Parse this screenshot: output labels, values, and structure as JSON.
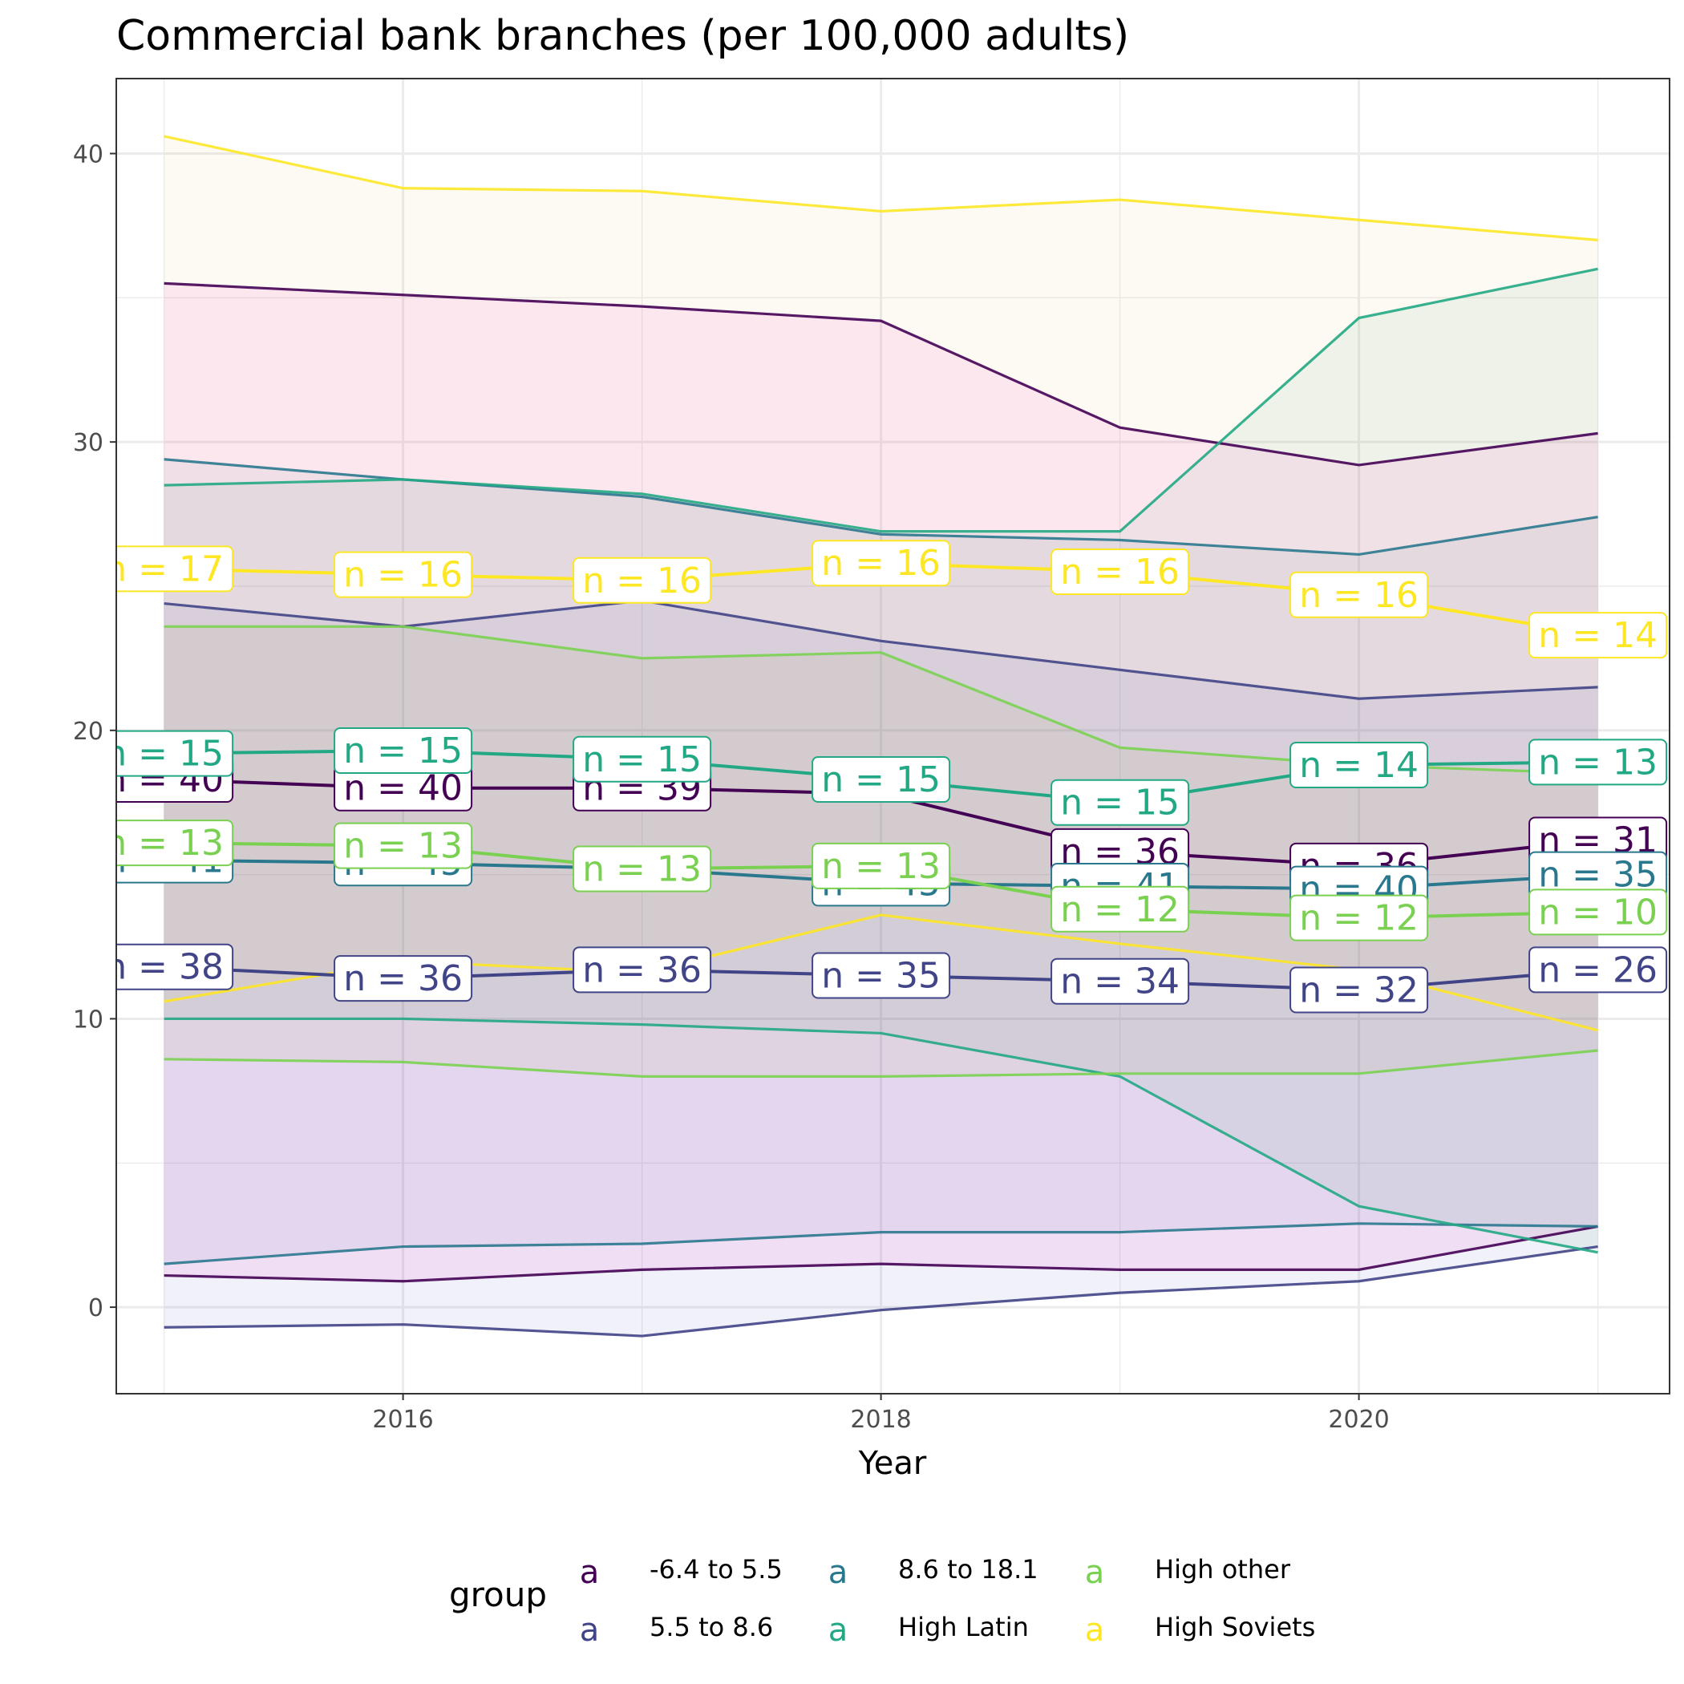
{
  "chart_data": {
    "type": "line",
    "title": "Commercial bank branches (per 100,000 adults)",
    "xlabel": "Year",
    "ylabel": "",
    "xlim": [
      2014.8,
      2021.3
    ],
    "ylim": [
      -3.0,
      42.6
    ],
    "x_ticks": [
      2016,
      2018,
      2020
    ],
    "x_tick_labels": [
      "2016",
      "2018",
      "2020"
    ],
    "y_ticks": [
      0,
      10,
      20,
      30,
      40
    ],
    "y_tick_labels": [
      "0",
      "10",
      "20",
      "30",
      "40"
    ],
    "grid": true,
    "legend": {
      "title": "group",
      "position": "bottom",
      "key_glyph": "a",
      "entries": [
        {
          "label": "-6.4 to 5.5",
          "color": "#440154"
        },
        {
          "label": "5.5 to 8.6",
          "color": "#414487"
        },
        {
          "label": "8.6 to 18.1",
          "color": "#2A788E"
        },
        {
          "label": "High Latin",
          "color": "#22A884"
        },
        {
          "label": "High other",
          "color": "#7AD151"
        },
        {
          "label": "High Soviets",
          "color": "#FDE725"
        }
      ]
    },
    "x": [
      2015,
      2016,
      2017,
      2018,
      2019,
      2020,
      2021
    ],
    "series": [
      {
        "name": "-6.4 to 5.5",
        "color": "#440154",
        "fill": "#FF00C8",
        "upper": [
          35.5,
          35.1,
          34.7,
          34.2,
          30.5,
          29.2,
          30.3
        ],
        "lower": [
          1.1,
          0.9,
          1.3,
          1.5,
          1.3,
          1.3,
          2.8
        ],
        "mean": [
          18.3,
          18.0,
          18.0,
          17.8,
          15.8,
          15.3,
          16.2
        ],
        "n": [
          40,
          40,
          39,
          null,
          36,
          36,
          31
        ],
        "n_label_y": [
          18.3,
          18.0,
          18.0,
          null,
          15.8,
          15.3,
          16.2
        ]
      },
      {
        "name": "5.5 to 8.6",
        "color": "#414487",
        "fill": "#3A4FAE",
        "upper": [
          24.4,
          23.6,
          24.5,
          23.1,
          22.1,
          21.1,
          21.5
        ],
        "lower": [
          -0.7,
          -0.6,
          -1.0,
          -0.1,
          0.5,
          0.9,
          2.1
        ],
        "mean": [
          11.8,
          11.4,
          11.7,
          11.5,
          11.3,
          11.0,
          11.7
        ],
        "n": [
          38,
          36,
          36,
          35,
          34,
          32,
          26
        ],
        "n_label_y": [
          11.8,
          11.4,
          11.7,
          11.5,
          11.3,
          11.0,
          11.7
        ]
      },
      {
        "name": "8.6 to 18.1",
        "color": "#2A788E",
        "fill": "#5F7EA0",
        "upper": [
          29.4,
          28.7,
          28.1,
          26.8,
          26.6,
          26.1,
          27.4
        ],
        "lower": [
          1.5,
          2.1,
          2.2,
          2.6,
          2.6,
          2.9,
          2.8
        ],
        "mean": [
          15.5,
          15.4,
          15.2,
          14.7,
          14.6,
          14.5,
          15.0
        ],
        "n": [
          41,
          45,
          null,
          45,
          41,
          40,
          35
        ],
        "n_label_y": [
          15.5,
          15.4,
          null,
          14.7,
          14.6,
          14.5,
          15.0
        ]
      },
      {
        "name": "High Latin",
        "color": "#22A884",
        "fill": "#3E9C78",
        "upper": [
          28.5,
          28.7,
          28.2,
          26.9,
          26.9,
          34.3,
          36.0
        ],
        "lower": [
          10.0,
          10.0,
          9.8,
          9.5,
          8.0,
          3.5,
          1.9
        ],
        "mean": [
          19.2,
          19.3,
          19.0,
          18.3,
          17.5,
          18.8,
          18.9
        ],
        "n": [
          15,
          15,
          15,
          15,
          15,
          14,
          13
        ],
        "n_label_y": [
          19.2,
          19.3,
          19.0,
          18.3,
          17.5,
          18.8,
          18.9
        ]
      },
      {
        "name": "High other",
        "color": "#7AD151",
        "fill": "#A8A050",
        "upper": [
          23.6,
          23.6,
          22.5,
          22.7,
          19.4,
          18.8,
          18.5
        ],
        "lower": [
          8.6,
          8.5,
          8.0,
          8.0,
          8.1,
          8.1,
          8.9
        ],
        "mean": [
          16.1,
          16.0,
          15.2,
          15.3,
          13.8,
          13.5,
          13.7
        ],
        "n": [
          13,
          13,
          13,
          13,
          12,
          12,
          10
        ],
        "n_label_y": [
          16.1,
          16.0,
          15.2,
          15.3,
          13.8,
          13.5,
          13.7
        ]
      },
      {
        "name": "High Soviets",
        "color": "#FDE725",
        "fill": "#E8C060",
        "upper": [
          40.6,
          38.8,
          38.7,
          38.0,
          38.4,
          37.7,
          37.0
        ],
        "lower": [
          10.6,
          12.0,
          11.6,
          13.6,
          12.6,
          11.7,
          9.6
        ],
        "mean": [
          25.6,
          25.4,
          25.2,
          25.8,
          25.5,
          24.7,
          23.3
        ],
        "n": [
          17,
          16,
          16,
          16,
          16,
          16,
          14
        ],
        "n_label_y": [
          25.6,
          25.4,
          25.2,
          25.8,
          25.5,
          24.7,
          23.3
        ]
      }
    ]
  }
}
